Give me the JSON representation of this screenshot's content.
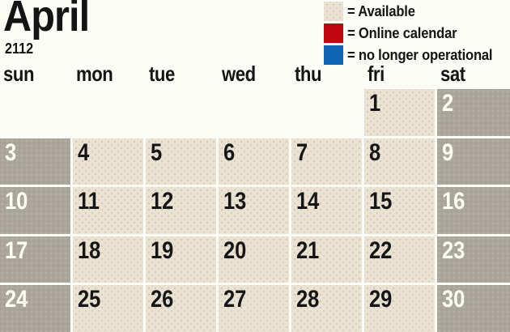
{
  "title": {
    "month": "April",
    "year": "2112"
  },
  "legend": {
    "items": [
      {
        "key": "available",
        "swatch_color": "#eae3d4",
        "textured": true,
        "label": "= Available"
      },
      {
        "key": "online-calendar",
        "swatch_color": "#c0060f",
        "textured": false,
        "label": "= Online calendar"
      },
      {
        "key": "no-longer-operational",
        "swatch_color": "#1064b5",
        "textured": false,
        "label": "= no longer operational"
      }
    ]
  },
  "weekdays": [
    "sun",
    "mon",
    "tue",
    "wed",
    "thu",
    "fri",
    "sat"
  ],
  "calendar": {
    "month_label": "April 2112",
    "weeks": [
      [
        {
          "day": "",
          "state": "empty"
        },
        {
          "day": "",
          "state": "empty"
        },
        {
          "day": "",
          "state": "empty"
        },
        {
          "day": "",
          "state": "empty"
        },
        {
          "day": "",
          "state": "empty"
        },
        {
          "day": "1",
          "state": "available"
        },
        {
          "day": "2",
          "state": "weekend"
        }
      ],
      [
        {
          "day": "3",
          "state": "weekend"
        },
        {
          "day": "4",
          "state": "available"
        },
        {
          "day": "5",
          "state": "available"
        },
        {
          "day": "6",
          "state": "available"
        },
        {
          "day": "7",
          "state": "available"
        },
        {
          "day": "8",
          "state": "available"
        },
        {
          "day": "9",
          "state": "weekend"
        }
      ],
      [
        {
          "day": "10",
          "state": "weekend"
        },
        {
          "day": "11",
          "state": "available"
        },
        {
          "day": "12",
          "state": "available"
        },
        {
          "day": "13",
          "state": "available"
        },
        {
          "day": "14",
          "state": "available"
        },
        {
          "day": "15",
          "state": "available"
        },
        {
          "day": "16",
          "state": "weekend"
        }
      ],
      [
        {
          "day": "17",
          "state": "weekend"
        },
        {
          "day": "18",
          "state": "available"
        },
        {
          "day": "19",
          "state": "available"
        },
        {
          "day": "20",
          "state": "available"
        },
        {
          "day": "21",
          "state": "available"
        },
        {
          "day": "22",
          "state": "available"
        },
        {
          "day": "23",
          "state": "weekend"
        }
      ],
      [
        {
          "day": "24",
          "state": "weekend"
        },
        {
          "day": "25",
          "state": "available"
        },
        {
          "day": "26",
          "state": "available"
        },
        {
          "day": "27",
          "state": "available"
        },
        {
          "day": "28",
          "state": "available"
        },
        {
          "day": "29",
          "state": "available"
        },
        {
          "day": "30",
          "state": "weekend"
        }
      ]
    ]
  },
  "colors": {
    "page_bg": "#fcfdf7",
    "text": "#141414",
    "available_bg": "#eae3d4",
    "weekend_bg": "#aba69c",
    "day_text": "#161616",
    "weekend_day_text": "#fffdf6",
    "legend_red": "#c0060f",
    "legend_blue": "#1064b5"
  }
}
